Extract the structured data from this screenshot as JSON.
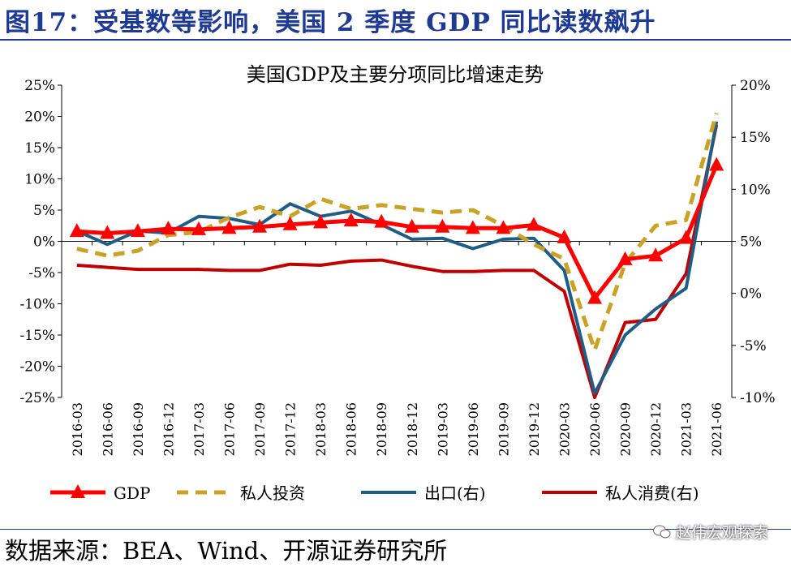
{
  "figure_title": "图17：受基数等影响，美国 2 季度 GDP 同比读数飙升",
  "source": "数据来源：BEA、Wind、开源证券研究所",
  "watermark": "赵伟宏观探索",
  "colors": {
    "heading": "#1f3a93",
    "gdp": "#ff0000",
    "investment": "#c9a227",
    "exports": "#1f5d84",
    "consumption": "#c00000"
  },
  "chart_data": {
    "type": "line",
    "title": "美国GDP及主要分项同比增速走势",
    "categories": [
      "2016-03",
      "2016-06",
      "2016-09",
      "2016-12",
      "2017-03",
      "2017-06",
      "2017-09",
      "2017-12",
      "2018-03",
      "2018-06",
      "2018-09",
      "2018-12",
      "2019-03",
      "2019-06",
      "2019-09",
      "2019-12",
      "2020-03",
      "2020-06",
      "2020-09",
      "2020-12",
      "2021-03",
      "2021-06"
    ],
    "left_axis": {
      "min": -25,
      "max": 25,
      "step": 5,
      "ticks": [
        "25%",
        "20%",
        "15%",
        "10%",
        "5%",
        "0%",
        "-5%",
        "-10%",
        "-15%",
        "-20%",
        "-25%"
      ]
    },
    "right_axis": {
      "min": -10,
      "max": 20,
      "step": 5,
      "ticks": [
        "20%",
        "15%",
        "10%",
        "5%",
        "0%",
        "-5%",
        "-10%"
      ]
    },
    "series": [
      {
        "name": "GDP",
        "axis": "left",
        "style": "solid-triangle",
        "values": [
          1.6,
          1.3,
          1.6,
          2.0,
          1.9,
          2.1,
          2.3,
          2.7,
          3.0,
          3.3,
          3.1,
          2.3,
          2.3,
          2.1,
          2.1,
          2.6,
          0.6,
          -9.1,
          -2.9,
          -2.3,
          0.5,
          12.2
        ]
      },
      {
        "name": "私人投资",
        "axis": "left",
        "style": "dashed",
        "values": [
          -1.2,
          -2.3,
          -1.5,
          1.0,
          1.5,
          3.8,
          5.5,
          4.0,
          6.8,
          5.2,
          5.8,
          5.2,
          4.6,
          5.0,
          2.5,
          -0.5,
          -2.8,
          -17.4,
          -3.5,
          2.5,
          3.4,
          20.5
        ]
      },
      {
        "name": "出口(右)",
        "axis": "right",
        "style": "solid",
        "values": [
          6.0,
          4.7,
          6.0,
          5.8,
          7.4,
          7.2,
          6.6,
          8.6,
          7.4,
          7.9,
          6.6,
          5.2,
          5.3,
          4.3,
          5.2,
          5.3,
          2.2,
          -9.6,
          -4.0,
          -1.5,
          0.5,
          16.5
        ]
      },
      {
        "name": "私人消费(右)",
        "axis": "right",
        "style": "solid",
        "values": [
          2.7,
          2.5,
          2.3,
          2.3,
          2.3,
          2.2,
          2.2,
          2.8,
          2.7,
          3.1,
          3.2,
          2.6,
          2.1,
          2.1,
          2.2,
          2.2,
          0.2,
          -10.0,
          -2.8,
          -2.5,
          1.9,
          16.2
        ]
      }
    ]
  }
}
